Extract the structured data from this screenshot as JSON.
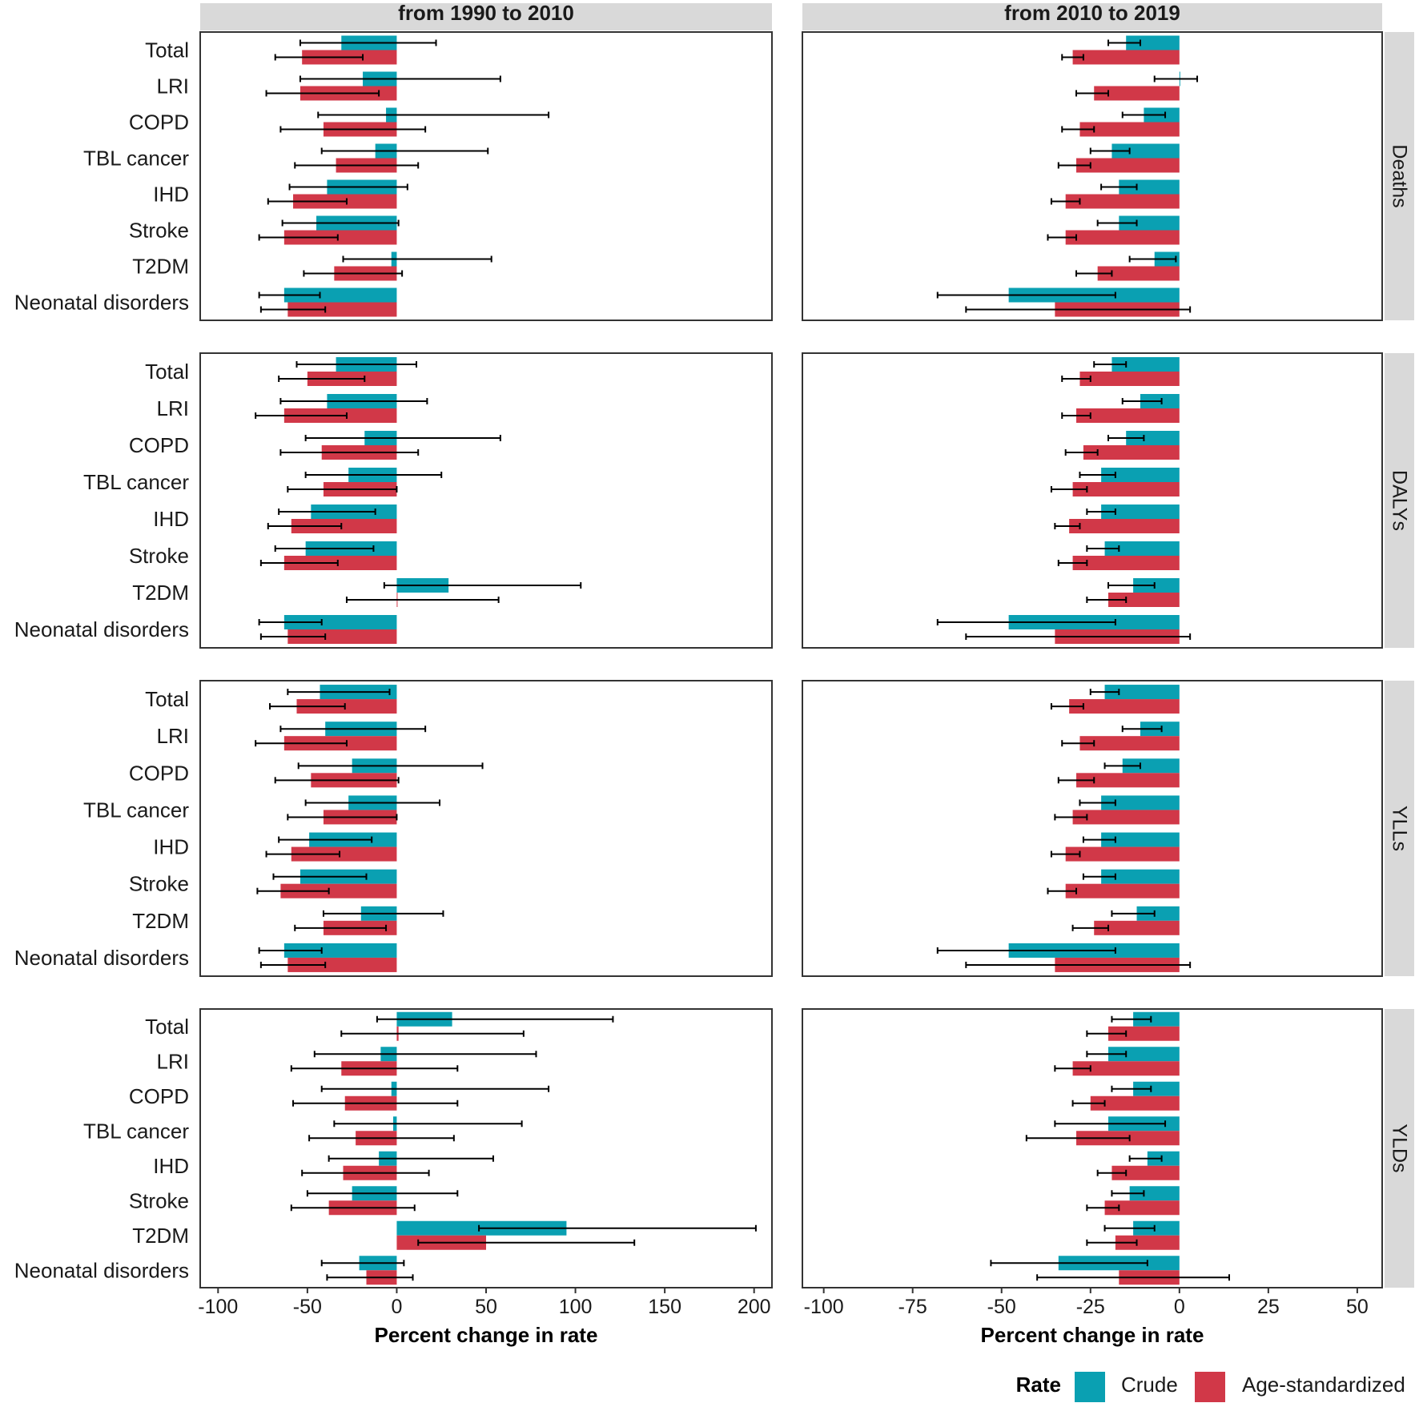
{
  "chart_data": {
    "type": "bar",
    "orientation": "horizontal",
    "colors": {
      "Crude": "#0aa0b2",
      "Age-standardized": "#d13848",
      "strip": "#d9d9d9",
      "errorbar": "#000000"
    },
    "columns": [
      "from 1990 to 2010",
      "from 2010 to 2019"
    ],
    "rows": [
      "Deaths",
      "DALYs",
      "YLLs",
      "YLDs"
    ],
    "categories": [
      "Total",
      "LRI",
      "COPD",
      "TBL cancer",
      "IHD",
      "Stroke",
      "T2DM",
      "Neonatal disorders"
    ],
    "x_axes": [
      {
        "xlim": [
          -110,
          210
        ],
        "ticks": [
          -100,
          -50,
          0,
          50,
          100,
          150,
          200
        ],
        "xlabel": "Percent change in rate"
      },
      {
        "xlim": [
          -106,
          57
        ],
        "ticks": [
          -100,
          -75,
          -50,
          -25,
          0,
          25,
          50
        ],
        "xlabel": "Percent change in rate"
      }
    ],
    "legend": {
      "title": "Rate",
      "entries": [
        "Crude",
        "Age-standardized"
      ],
      "position": "bottom-right"
    },
    "panels": [
      {
        "column": 0,
        "row": "Deaths",
        "crude": [
          [
            -31,
            -54,
            22
          ],
          [
            -19,
            -54,
            58
          ],
          [
            -6,
            -44,
            85
          ],
          [
            -12,
            -42,
            51
          ],
          [
            -39,
            -60,
            6
          ],
          [
            -45,
            -64,
            1
          ],
          [
            -3,
            -30,
            53
          ],
          [
            -63,
            -77,
            -43
          ]
        ],
        "age_standardized": [
          [
            -53,
            -68,
            -19
          ],
          [
            -54,
            -73,
            -10
          ],
          [
            -41,
            -65,
            16
          ],
          [
            -34,
            -57,
            12
          ],
          [
            -58,
            -72,
            -28
          ],
          [
            -63,
            -77,
            -33
          ],
          [
            -35,
            -52,
            3
          ],
          [
            -61,
            -76,
            -40
          ]
        ]
      },
      {
        "column": 1,
        "row": "Deaths",
        "crude": [
          [
            -15,
            -20,
            -11
          ],
          [
            0,
            -7,
            5
          ],
          [
            -10,
            -16,
            -4
          ],
          [
            -19,
            -25,
            -14
          ],
          [
            -17,
            -22,
            -12
          ],
          [
            -17,
            -23,
            -12
          ],
          [
            -7,
            -14,
            -1
          ],
          [
            -48,
            -68,
            -18
          ]
        ],
        "age_standardized": [
          [
            -30,
            -33,
            -27
          ],
          [
            -24,
            -29,
            -20
          ],
          [
            -28,
            -33,
            -24
          ],
          [
            -29,
            -34,
            -25
          ],
          [
            -32,
            -36,
            -28
          ],
          [
            -32,
            -37,
            -29
          ],
          [
            -23,
            -29,
            -19
          ],
          [
            -35,
            -60,
            3
          ]
        ]
      },
      {
        "column": 0,
        "row": "DALYs",
        "crude": [
          [
            -34,
            -56,
            11
          ],
          [
            -39,
            -65,
            17
          ],
          [
            -18,
            -51,
            58
          ],
          [
            -27,
            -51,
            25
          ],
          [
            -48,
            -66,
            -12
          ],
          [
            -51,
            -68,
            -13
          ],
          [
            29,
            -7,
            103
          ],
          [
            -63,
            -77,
            -42
          ]
        ],
        "age_standardized": [
          [
            -50,
            -66,
            -18
          ],
          [
            -63,
            -79,
            -28
          ],
          [
            -42,
            -65,
            12
          ],
          [
            -41,
            -61,
            0
          ],
          [
            -59,
            -72,
            -31
          ],
          [
            -63,
            -76,
            -33
          ],
          [
            0,
            -28,
            57
          ],
          [
            -61,
            -76,
            -40
          ]
        ]
      },
      {
        "column": 1,
        "row": "DALYs",
        "crude": [
          [
            -19,
            -24,
            -15
          ],
          [
            -11,
            -16,
            -5
          ],
          [
            -15,
            -20,
            -10
          ],
          [
            -22,
            -28,
            -18
          ],
          [
            -22,
            -26,
            -18
          ],
          [
            -21,
            -26,
            -17
          ],
          [
            -13,
            -20,
            -7
          ],
          [
            -48,
            -68,
            -18
          ]
        ],
        "age_standardized": [
          [
            -28,
            -33,
            -25
          ],
          [
            -29,
            -33,
            -25
          ],
          [
            -27,
            -32,
            -23
          ],
          [
            -30,
            -36,
            -26
          ],
          [
            -31,
            -35,
            -28
          ],
          [
            -30,
            -34,
            -26
          ],
          [
            -20,
            -26,
            -15
          ],
          [
            -35,
            -60,
            3
          ]
        ]
      },
      {
        "column": 0,
        "row": "YLLs",
        "crude": [
          [
            -43,
            -61,
            -4
          ],
          [
            -40,
            -65,
            16
          ],
          [
            -25,
            -55,
            48
          ],
          [
            -27,
            -51,
            24
          ],
          [
            -49,
            -66,
            -14
          ],
          [
            -54,
            -69,
            -17
          ],
          [
            -20,
            -41,
            26
          ],
          [
            -63,
            -77,
            -42
          ]
        ],
        "age_standardized": [
          [
            -56,
            -71,
            -29
          ],
          [
            -63,
            -79,
            -28
          ],
          [
            -48,
            -68,
            1
          ],
          [
            -41,
            -61,
            0
          ],
          [
            -59,
            -73,
            -32
          ],
          [
            -65,
            -78,
            -38
          ],
          [
            -41,
            -57,
            -6
          ],
          [
            -61,
            -76,
            -40
          ]
        ]
      },
      {
        "column": 1,
        "row": "YLLs",
        "crude": [
          [
            -21,
            -25,
            -17
          ],
          [
            -11,
            -16,
            -5
          ],
          [
            -16,
            -21,
            -11
          ],
          [
            -22,
            -28,
            -18
          ],
          [
            -22,
            -27,
            -18
          ],
          [
            -22,
            -27,
            -18
          ],
          [
            -12,
            -19,
            -7
          ],
          [
            -48,
            -68,
            -18
          ]
        ],
        "age_standardized": [
          [
            -31,
            -36,
            -27
          ],
          [
            -28,
            -33,
            -24
          ],
          [
            -29,
            -34,
            -24
          ],
          [
            -30,
            -35,
            -26
          ],
          [
            -32,
            -36,
            -28
          ],
          [
            -32,
            -37,
            -29
          ],
          [
            -24,
            -30,
            -20
          ],
          [
            -35,
            -60,
            3
          ]
        ]
      },
      {
        "column": 0,
        "row": "YLDs",
        "crude": [
          [
            31,
            -11,
            121
          ],
          [
            -9,
            -46,
            78
          ],
          [
            -3,
            -42,
            85
          ],
          [
            -2,
            -35,
            70
          ],
          [
            -10,
            -38,
            54
          ],
          [
            -25,
            -50,
            34
          ],
          [
            95,
            46,
            201
          ],
          [
            -21,
            -42,
            4
          ]
        ],
        "age_standardized": [
          [
            1,
            -31,
            71
          ],
          [
            -31,
            -59,
            34
          ],
          [
            -29,
            -58,
            34
          ],
          [
            -23,
            -49,
            32
          ],
          [
            -30,
            -53,
            18
          ],
          [
            -38,
            -59,
            10
          ],
          [
            50,
            12,
            133
          ],
          [
            -17,
            -39,
            9
          ]
        ]
      },
      {
        "column": 1,
        "row": "YLDs",
        "crude": [
          [
            -13,
            -19,
            -8
          ],
          [
            -20,
            -26,
            -15
          ],
          [
            -13,
            -19,
            -8
          ],
          [
            -20,
            -35,
            -4
          ],
          [
            -9,
            -14,
            -5
          ],
          [
            -14,
            -19,
            -10
          ],
          [
            -13,
            -21,
            -7
          ],
          [
            -34,
            -53,
            -9
          ]
        ],
        "age_standardized": [
          [
            -20,
            -26,
            -15
          ],
          [
            -30,
            -35,
            -25
          ],
          [
            -25,
            -30,
            -21
          ],
          [
            -29,
            -43,
            -14
          ],
          [
            -19,
            -23,
            -15
          ],
          [
            -21,
            -26,
            -17
          ],
          [
            -18,
            -26,
            -12
          ],
          [
            -17,
            -40,
            14
          ]
        ]
      }
    ]
  }
}
